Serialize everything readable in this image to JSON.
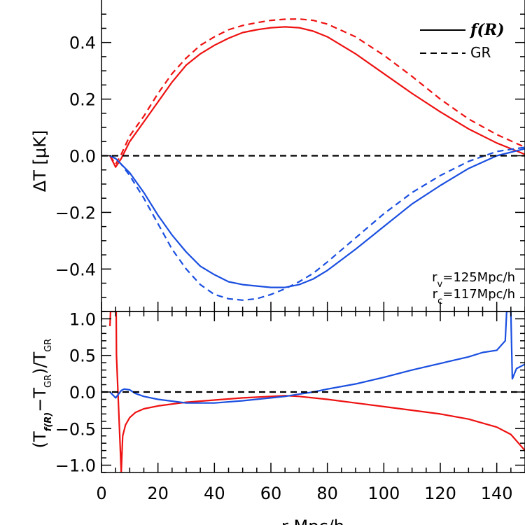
{
  "chart_data": [
    {
      "type": "line",
      "panel": "top",
      "ylabel": "ΔT [μK]",
      "ylim": [
        -0.55,
        0.55
      ],
      "xlim": [
        0,
        150
      ],
      "yticks": [
        -0.4,
        -0.2,
        0.0,
        0.2,
        0.4
      ],
      "ytick_labels": [
        "−0.4",
        "−0.2",
        "0.0",
        "0.2",
        "0.4"
      ],
      "grid": false,
      "legend": {
        "placement": "top-right",
        "entries": [
          {
            "label": "f(R)",
            "linestyle": "solid"
          },
          {
            "label": "GR",
            "linestyle": "dashed"
          }
        ]
      },
      "annotations": [
        {
          "main": "r",
          "sub": "v",
          "rest": "=125Mpc/h",
          "color": "#1a4fe0"
        },
        {
          "main": "r",
          "sub": "c",
          "rest": "=117Mpc/h",
          "color": "#ee1111"
        }
      ],
      "series": [
        {
          "color": "#ee1111",
          "linestyle": "solid",
          "x": [
            3,
            5,
            7,
            10,
            15,
            20,
            25,
            30,
            35,
            40,
            45,
            50,
            55,
            60,
            65,
            70,
            75,
            80,
            90,
            100,
            110,
            120,
            130,
            140,
            150
          ],
          "y": [
            0,
            -0.04,
            -0.01,
            0.05,
            0.12,
            0.19,
            0.26,
            0.32,
            0.36,
            0.39,
            0.415,
            0.435,
            0.445,
            0.452,
            0.455,
            0.452,
            0.44,
            0.42,
            0.36,
            0.29,
            0.22,
            0.155,
            0.095,
            0.045,
            0.005
          ]
        },
        {
          "color": "#ee1111",
          "linestyle": "dashed",
          "x": [
            3,
            5,
            7,
            10,
            15,
            20,
            25,
            30,
            35,
            40,
            45,
            50,
            55,
            60,
            65,
            70,
            75,
            80,
            90,
            100,
            110,
            120,
            130,
            140,
            150
          ],
          "y": [
            0,
            -0.03,
            0.005,
            0.07,
            0.14,
            0.22,
            0.29,
            0.345,
            0.39,
            0.42,
            0.445,
            0.46,
            0.47,
            0.478,
            0.482,
            0.483,
            0.478,
            0.465,
            0.42,
            0.355,
            0.28,
            0.2,
            0.13,
            0.075,
            0.03
          ]
        },
        {
          "color": "#1a4fe0",
          "linestyle": "solid",
          "x": [
            3,
            5,
            7,
            10,
            15,
            20,
            25,
            30,
            35,
            40,
            45,
            50,
            55,
            60,
            65,
            70,
            75,
            80,
            90,
            100,
            110,
            120,
            130,
            140,
            150
          ],
          "y": [
            0,
            -0.01,
            -0.03,
            -0.06,
            -0.13,
            -0.21,
            -0.28,
            -0.34,
            -0.39,
            -0.42,
            -0.445,
            -0.455,
            -0.46,
            -0.465,
            -0.465,
            -0.455,
            -0.435,
            -0.405,
            -0.33,
            -0.25,
            -0.17,
            -0.105,
            -0.045,
            0.0,
            0.025
          ]
        },
        {
          "color": "#1a4fe0",
          "linestyle": "dashed",
          "x": [
            3,
            5,
            7,
            10,
            15,
            20,
            25,
            30,
            35,
            40,
            45,
            50,
            55,
            60,
            65,
            70,
            75,
            80,
            90,
            100,
            110,
            120,
            130,
            140,
            150
          ],
          "y": [
            0,
            -0.01,
            -0.03,
            -0.07,
            -0.15,
            -0.24,
            -0.33,
            -0.4,
            -0.455,
            -0.49,
            -0.505,
            -0.51,
            -0.505,
            -0.49,
            -0.47,
            -0.445,
            -0.415,
            -0.375,
            -0.29,
            -0.205,
            -0.13,
            -0.07,
            -0.02,
            0.015,
            0.03
          ]
        },
        {
          "color": "#000000",
          "linestyle": "dashed",
          "x": [
            0,
            150
          ],
          "y": [
            0,
            0
          ]
        }
      ]
    },
    {
      "type": "line",
      "panel": "bottom",
      "xlabel": "r Mpc/h",
      "ylabel": "(Tf(R)−TGR)/TGR",
      "ylim": [
        -1.1,
        1.1
      ],
      "xlim": [
        0,
        150
      ],
      "xticks": [
        0,
        20,
        40,
        60,
        80,
        100,
        120,
        140
      ],
      "xtick_labels": [
        "0",
        "20",
        "40",
        "60",
        "80",
        "100",
        "120",
        "140"
      ],
      "yticks": [
        -1.0,
        -0.5,
        0.0,
        0.5,
        1.0
      ],
      "ytick_labels": [
        "−1.0",
        "−0.5",
        "0.0",
        "0.5",
        "1.0"
      ],
      "grid": false,
      "series": [
        {
          "color": "#ee1111",
          "linestyle": "solid",
          "x": [
            3.0,
            3.2,
            5.2,
            5.3,
            7.0,
            7.2,
            7.5,
            8.5,
            10,
            12,
            15,
            20,
            30,
            40,
            50,
            60,
            65,
            70,
            80,
            90,
            100,
            110,
            120,
            130,
            140,
            145,
            150
          ],
          "y": [
            0.9,
            1.1,
            1.1,
            0.5,
            -1.1,
            -0.9,
            -0.6,
            -0.45,
            -0.35,
            -0.28,
            -0.23,
            -0.19,
            -0.14,
            -0.11,
            -0.08,
            -0.06,
            -0.05,
            -0.06,
            -0.1,
            -0.15,
            -0.2,
            -0.25,
            -0.3,
            -0.37,
            -0.48,
            -0.58,
            -0.8
          ]
        },
        {
          "color": "#1a4fe0",
          "linestyle": "solid",
          "x": [
            3,
            5,
            7,
            8,
            10,
            12,
            15,
            20,
            30,
            40,
            50,
            60,
            65,
            70,
            75,
            80,
            90,
            100,
            110,
            120,
            130,
            135,
            140,
            143,
            143.5,
            145,
            145.5,
            147,
            150
          ],
          "y": [
            0,
            -0.08,
            0.02,
            0.04,
            0.03,
            -0.02,
            -0.06,
            -0.1,
            -0.15,
            -0.15,
            -0.12,
            -0.08,
            -0.06,
            -0.03,
            0.0,
            0.04,
            0.11,
            0.2,
            0.3,
            0.39,
            0.48,
            0.54,
            0.57,
            0.7,
            1.1,
            1.1,
            0.18,
            0.32,
            0.38
          ]
        },
        {
          "color": "#000000",
          "linestyle": "dashed",
          "x": [
            0,
            150
          ],
          "y": [
            0,
            0
          ]
        }
      ]
    }
  ]
}
